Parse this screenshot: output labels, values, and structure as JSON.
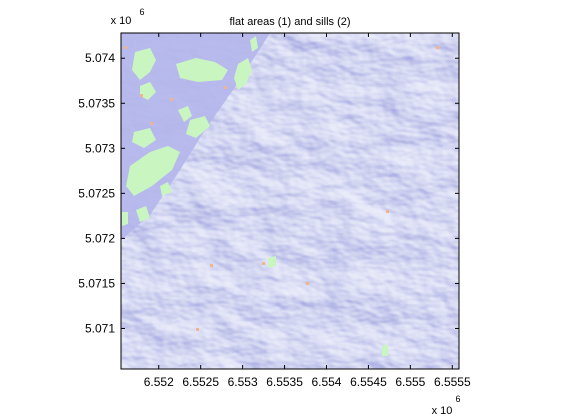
{
  "chart_data": {
    "type": "heatmap",
    "title": "flat areas (1) and sills (2)",
    "xlabel": "",
    "ylabel": "",
    "x_exponent_label": "x 10",
    "x_exponent_power": "6",
    "y_exponent_label": "x 10",
    "y_exponent_power": "6",
    "xlim": [
      6.55155,
      6.55558
    ],
    "ylim": [
      5.07055,
      5.07428
    ],
    "x_ticks": [
      6.552,
      6.5525,
      6.553,
      6.5535,
      6.554,
      6.5545,
      6.555,
      6.5555
    ],
    "x_tick_labels": [
      "6.552",
      "6.5525",
      "6.553",
      "6.5535",
      "6.554",
      "6.5545",
      "6.555",
      "6.5555"
    ],
    "y_ticks": [
      5.071,
      5.0715,
      5.072,
      5.0725,
      5.073,
      5.0735,
      5.074
    ],
    "y_tick_labels": [
      "5.071",
      "5.0715",
      "5.072",
      "5.0725",
      "5.073",
      "5.0735",
      "5.074"
    ],
    "background_description_colors": {
      "shaded_relief_base": "#aeb0e6",
      "shaded_relief_light": "#f2f2fc",
      "shaded_relief_dark": "#5a60c8",
      "flat_areas": "#c8f5c0",
      "sills": "#f2b48c"
    },
    "legend": "none",
    "grid": false
  }
}
